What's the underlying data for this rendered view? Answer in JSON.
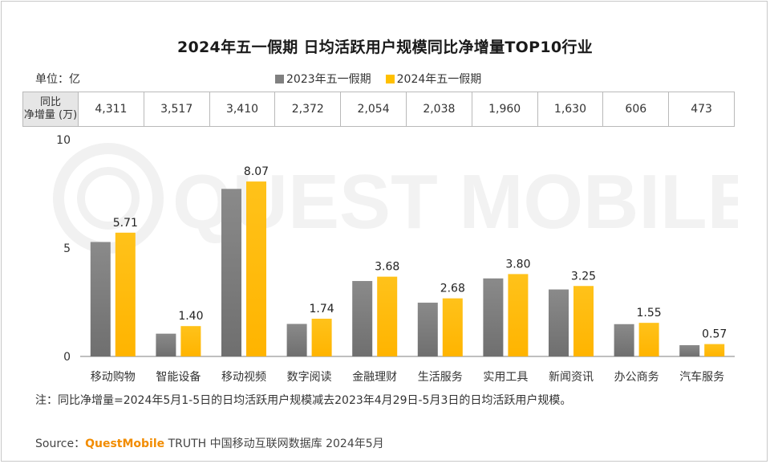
{
  "title": "2024年五一假期 日均活跃用户规模同比净增量TOP10行业",
  "unit_label": "单位：亿",
  "legend": [
    {
      "label": "2023年五一假期",
      "color": "#808080"
    },
    {
      "label": "2024年五一假期",
      "color": "#ffc000"
    }
  ],
  "growth_table": {
    "header_line1": "同比",
    "header_line2": "净增量 (万)",
    "values": [
      "4,311",
      "3,517",
      "3,410",
      "2,372",
      "2,054",
      "2,038",
      "1,960",
      "1,630",
      "606",
      "473"
    ]
  },
  "chart_data": {
    "type": "bar",
    "categories": [
      "移动购物",
      "智能设备",
      "移动视频",
      "数字阅读",
      "金融理财",
      "生活服务",
      "实用工具",
      "新闻资讯",
      "办公商务",
      "汽车服务"
    ],
    "series": [
      {
        "name": "2023年五一假期",
        "color": "#808080",
        "values": [
          5.28,
          1.05,
          7.73,
          1.5,
          3.48,
          2.48,
          3.6,
          3.09,
          1.49,
          0.52
        ],
        "labeled": false
      },
      {
        "name": "2024年五一假期",
        "color": "#ffc000",
        "values": [
          5.71,
          1.4,
          8.07,
          1.74,
          3.68,
          2.68,
          3.8,
          3.25,
          1.55,
          0.57
        ],
        "labeled": true
      }
    ],
    "data_labels": [
      "5.71",
      "1.40",
      "8.07",
      "1.74",
      "3.68",
      "2.68",
      "3.80",
      "3.25",
      "1.55",
      "0.57"
    ],
    "ylim": [
      0,
      10
    ],
    "yticks": [
      0,
      5,
      10
    ],
    "ytick_labels": [
      "0",
      "5",
      "10"
    ],
    "grid": false,
    "legend_position": "top-center"
  },
  "watermark_text": "QUEST MOBILE",
  "note": "注：同比净增量=2024年5月1-5日的日均活跃用户规模减去2023年4月29日-5月3日的日均活跃用户规模。",
  "source": {
    "prefix": "Source：",
    "brand": "QuestMobile",
    "suffix": " TRUTH 中国移动互联网数据库 2024年5月"
  }
}
